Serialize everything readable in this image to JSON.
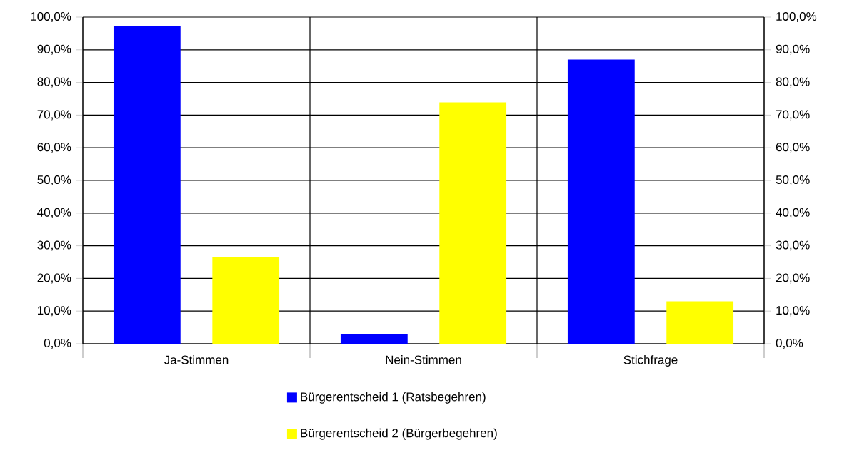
{
  "chart_data": {
    "type": "bar",
    "categories": [
      "Ja-Stimmen",
      "Nein-Stimmen",
      "Stichfrage"
    ],
    "series": [
      {
        "name": "Bürgerentscheid 1 (Ratsbegehren)",
        "color": "#0000ff",
        "values": [
          97.3,
          3.0,
          87.0
        ]
      },
      {
        "name": "Bürgerentscheid 2 (Bürgerbegehren)",
        "color": "#ffff00",
        "values": [
          26.5,
          73.9,
          13.0
        ]
      }
    ],
    "ylim": [
      0,
      100
    ],
    "yticks": [
      {
        "value": 0,
        "label": "0,0%"
      },
      {
        "value": 10,
        "label": "10,0%"
      },
      {
        "value": 20,
        "label": "20,0%"
      },
      {
        "value": 30,
        "label": "30,0%"
      },
      {
        "value": 40,
        "label": "40,0%"
      },
      {
        "value": 50,
        "label": "50,0%"
      },
      {
        "value": 60,
        "label": "60,0%"
      },
      {
        "value": 70,
        "label": "70,0%"
      },
      {
        "value": 80,
        "label": "80,0%"
      },
      {
        "value": 90,
        "label": "90,0%"
      },
      {
        "value": 100,
        "label": "100,0%"
      }
    ],
    "y2lim": [
      0,
      100
    ],
    "y2ticks": [
      {
        "value": 0,
        "label": "0,0%"
      },
      {
        "value": 10,
        "label": "10,0%"
      },
      {
        "value": 20,
        "label": "20,0%"
      },
      {
        "value": 30,
        "label": "30,0%"
      },
      {
        "value": 40,
        "label": "40,0%"
      },
      {
        "value": 50,
        "label": "50,0%"
      },
      {
        "value": 60,
        "label": "60,0%"
      },
      {
        "value": 70,
        "label": "70,0%"
      },
      {
        "value": 80,
        "label": "80,0%"
      },
      {
        "value": 90,
        "label": "90,0%"
      },
      {
        "value": 100,
        "label": "100,0%"
      }
    ],
    "grid": true,
    "legend": "bottom"
  }
}
